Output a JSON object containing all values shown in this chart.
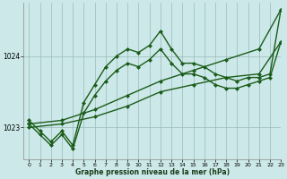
{
  "background_color": "#cce8e8",
  "plot_bg_color": "#cce8e8",
  "grid_color": "#99bbbb",
  "line_color": "#1a5c1a",
  "xlabel": "Graphe pression niveau de la mer (hPa)",
  "xlim": [
    -0.5,
    23
  ],
  "ylim": [
    1022.55,
    1024.75
  ],
  "yticks": [
    1023,
    1024
  ],
  "xticks": [
    0,
    1,
    2,
    3,
    4,
    5,
    6,
    7,
    8,
    9,
    10,
    11,
    12,
    13,
    14,
    15,
    16,
    17,
    18,
    19,
    20,
    21,
    22,
    23
  ],
  "series": [
    {
      "x": [
        0,
        1,
        2,
        3,
        4,
        5,
        6,
        7,
        8,
        9,
        10,
        11,
        12,
        13,
        14,
        15,
        16,
        17,
        18,
        19,
        20,
        21,
        22,
        23
      ],
      "y": [
        1023.1,
        1022.95,
        1022.8,
        1022.95,
        1022.75,
        1023.35,
        1023.6,
        1023.85,
        1024.0,
        1024.1,
        1024.05,
        1024.15,
        1024.35,
        1024.1,
        1023.9,
        1023.9,
        1023.85,
        1023.75,
        1023.7,
        1023.65,
        1023.7,
        1023.7,
        1023.75,
        1024.65
      ],
      "marker": "D",
      "markersize": 2.0,
      "linewidth": 1.0
    },
    {
      "x": [
        0,
        1,
        2,
        3,
        4,
        5,
        6,
        7,
        8,
        9,
        10,
        11,
        12,
        13,
        14,
        15,
        16,
        17,
        18,
        19,
        20,
        21,
        22,
        23
      ],
      "y": [
        1023.05,
        1022.9,
        1022.75,
        1022.9,
        1022.7,
        1023.2,
        1023.45,
        1023.65,
        1023.8,
        1023.9,
        1023.85,
        1023.95,
        1024.1,
        1023.9,
        1023.75,
        1023.75,
        1023.7,
        1023.6,
        1023.55,
        1023.55,
        1023.6,
        1023.65,
        1023.7,
        1024.2
      ],
      "marker": "D",
      "markersize": 2.0,
      "linewidth": 1.0
    },
    {
      "x": [
        0,
        3,
        6,
        9,
        12,
        15,
        18,
        21,
        23
      ],
      "y": [
        1023.05,
        1023.1,
        1023.25,
        1023.45,
        1023.65,
        1023.8,
        1023.95,
        1024.1,
        1024.65
      ],
      "marker": "D",
      "markersize": 2.0,
      "linewidth": 1.0
    },
    {
      "x": [
        0,
        3,
        6,
        9,
        12,
        15,
        18,
        21,
        23
      ],
      "y": [
        1023.0,
        1023.05,
        1023.15,
        1023.3,
        1023.5,
        1023.6,
        1023.7,
        1023.75,
        1024.2
      ],
      "marker": "D",
      "markersize": 2.0,
      "linewidth": 1.0
    }
  ]
}
